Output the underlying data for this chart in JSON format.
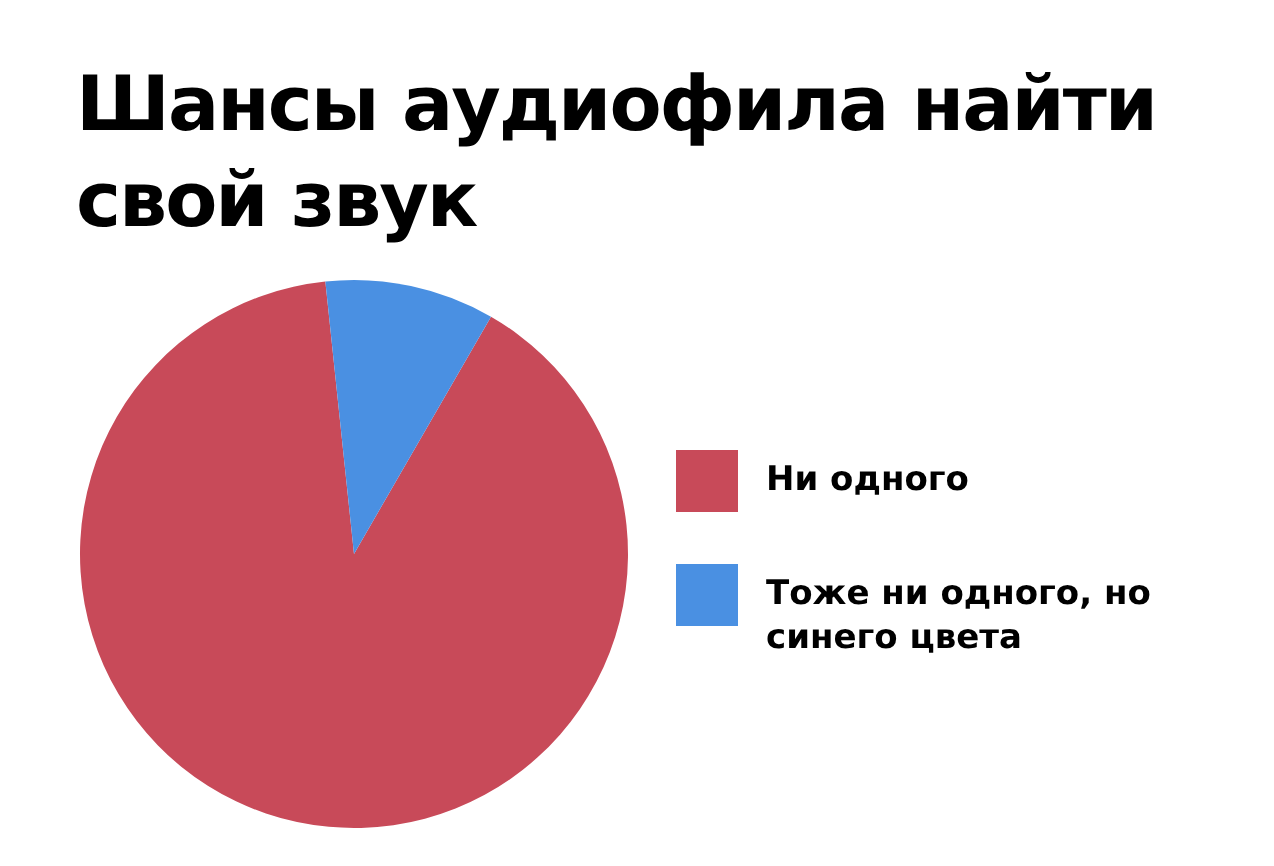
{
  "chart_data": {
    "type": "pie",
    "title": "Шансы аудиофила найти свой звук",
    "categories": [
      "Ни одного",
      "Тоже ни одного, но синего цвета"
    ],
    "values": [
      90,
      10
    ],
    "colors": [
      "#c84a59",
      "#4a90e2"
    ],
    "legend": "right"
  }
}
